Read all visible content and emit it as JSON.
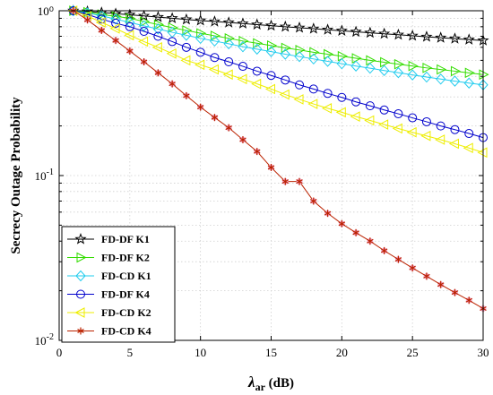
{
  "chart_data": {
    "type": "line",
    "title": "",
    "xlabel": {
      "main": "λ",
      "sub": "ar",
      "unit": " (dB)"
    },
    "ylabel": "Secrecy Outage Probability",
    "xlim": [
      0,
      30
    ],
    "ylim": [
      0.01,
      1
    ],
    "yscale": "log",
    "grid": true,
    "legend_position": "bottom-left",
    "xticks": [
      0,
      5,
      10,
      15,
      20,
      25,
      30
    ],
    "yticks": [
      {
        "value": 0.01,
        "base": "10",
        "exp": "-2"
      },
      {
        "value": 0.1,
        "base": "10",
        "exp": "-1"
      },
      {
        "value": 1,
        "base": "10",
        "exp": "0",
        "label": "10⁰"
      }
    ],
    "x": [
      1,
      2,
      3,
      4,
      5,
      6,
      7,
      8,
      9,
      10,
      11,
      12,
      13,
      14,
      15,
      16,
      17,
      18,
      19,
      20,
      21,
      22,
      23,
      24,
      25,
      26,
      27,
      28,
      29,
      30
    ],
    "series": [
      {
        "name": "FD-DF K1",
        "color": "#000000",
        "marker": "star",
        "values": [
          1.0,
          0.99,
          0.975,
          0.96,
          0.945,
          0.93,
          0.915,
          0.9,
          0.885,
          0.872,
          0.86,
          0.848,
          0.836,
          0.824,
          0.812,
          0.8,
          0.789,
          0.778,
          0.767,
          0.756,
          0.745,
          0.735,
          0.725,
          0.715,
          0.705,
          0.695,
          0.686,
          0.677,
          0.668,
          0.66
        ]
      },
      {
        "name": "FD-DF K2",
        "color": "#33dd00",
        "marker": "triangle-right",
        "values": [
          1.0,
          0.98,
          0.95,
          0.925,
          0.9,
          0.86,
          0.825,
          0.79,
          0.76,
          0.73,
          0.705,
          0.68,
          0.655,
          0.635,
          0.615,
          0.595,
          0.578,
          0.56,
          0.545,
          0.53,
          0.515,
          0.5,
          0.487,
          0.474,
          0.462,
          0.45,
          0.44,
          0.43,
          0.42,
          0.41
        ]
      },
      {
        "name": "FD-CD K1",
        "color": "#22ccee",
        "marker": "diamond",
        "values": [
          1.0,
          0.97,
          0.93,
          0.89,
          0.85,
          0.81,
          0.775,
          0.74,
          0.71,
          0.68,
          0.655,
          0.63,
          0.605,
          0.585,
          0.565,
          0.545,
          0.527,
          0.51,
          0.493,
          0.477,
          0.462,
          0.448,
          0.434,
          0.421,
          0.408,
          0.396,
          0.385,
          0.374,
          0.364,
          0.355
        ]
      },
      {
        "name": "FD-DF K4",
        "color": "#0000cc",
        "marker": "circle",
        "values": [
          1.0,
          0.95,
          0.89,
          0.84,
          0.8,
          0.75,
          0.7,
          0.65,
          0.6,
          0.56,
          0.52,
          0.49,
          0.46,
          0.43,
          0.405,
          0.38,
          0.355,
          0.335,
          0.315,
          0.298,
          0.28,
          0.265,
          0.25,
          0.237,
          0.224,
          0.212,
          0.2,
          0.19,
          0.18,
          0.17
        ]
      },
      {
        "name": "FD-CD K2",
        "color": "#eeee00",
        "marker": "triangle-left",
        "values": [
          1.0,
          0.93,
          0.85,
          0.78,
          0.71,
          0.65,
          0.6,
          0.55,
          0.5,
          0.47,
          0.44,
          0.41,
          0.385,
          0.36,
          0.335,
          0.31,
          0.29,
          0.272,
          0.256,
          0.242,
          0.228,
          0.216,
          0.204,
          0.193,
          0.183,
          0.174,
          0.165,
          0.156,
          0.147,
          0.138
        ]
      },
      {
        "name": "FD-CD K4",
        "color": "#bb2200",
        "marker": "asterisk",
        "values": [
          1.0,
          0.88,
          0.76,
          0.66,
          0.57,
          0.49,
          0.42,
          0.36,
          0.305,
          0.26,
          0.225,
          0.195,
          0.165,
          0.14,
          0.112,
          0.092,
          0.092,
          0.07,
          0.059,
          0.051,
          0.045,
          0.04,
          0.035,
          0.031,
          0.0275,
          0.0245,
          0.0218,
          0.0195,
          0.0175,
          0.0156
        ]
      }
    ]
  }
}
